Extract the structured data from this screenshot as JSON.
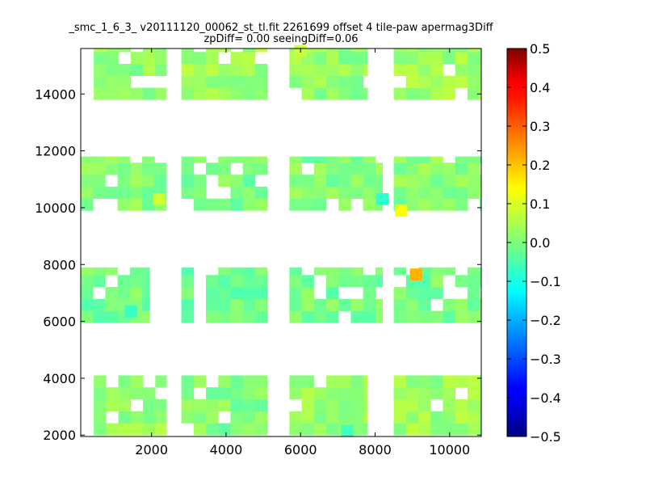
{
  "chart_data": {
    "type": "heatmap",
    "title_line1": "_smc_1_6_3_ v20111120_00062_st_tl.fit 2261699 offset 4 tile-paw apermag3Diff",
    "title_line2": "zpDiff= 0.00 seeingDiff=0.06",
    "xlabel": "",
    "ylabel": "",
    "xlim": [
      100,
      10850
    ],
    "ylim": [
      1950,
      15600
    ],
    "x_ticks": [
      2000,
      4000,
      6000,
      8000,
      10000
    ],
    "y_ticks": [
      2000,
      4000,
      6000,
      8000,
      10000,
      12000,
      14000
    ],
    "x_tick_labels": [
      "2000",
      "4000",
      "6000",
      "8000",
      "10000"
    ],
    "y_tick_labels": [
      "2000",
      "4000",
      "6000",
      "8000",
      "10000",
      "12000",
      "14000"
    ],
    "colorbar": {
      "colormap": "jet",
      "vmin": -0.5,
      "vmax": 0.5,
      "ticks": [
        0.5,
        0.4,
        0.3,
        0.2,
        0.1,
        0.0,
        -0.1,
        -0.2,
        -0.3,
        -0.4,
        -0.5
      ],
      "tick_labels": [
        "0.5",
        "0.4",
        "0.3",
        "0.2",
        "0.1",
        "0.0",
        "−0.1",
        "−0.2",
        "−0.3",
        "−0.4",
        "−0.5"
      ]
    },
    "cell_size": [
      330,
      420
    ],
    "regions": [
      {
        "x": [
          450,
          2400
        ],
        "y": [
          2000,
          4100
        ],
        "value": 0.02
      },
      {
        "x": [
          2800,
          5100
        ],
        "y": [
          2000,
          4100
        ],
        "value": 0.0
      },
      {
        "x": [
          5700,
          7800
        ],
        "y": [
          2000,
          4100
        ],
        "value": 0.02
      },
      {
        "x": [
          8500,
          10850
        ],
        "y": [
          2000,
          4100
        ],
        "value": 0.03
      },
      {
        "x": [
          0,
          1950
        ],
        "y": [
          5950,
          7900
        ],
        "value": -0.01
      },
      {
        "x": [
          2800,
          5100
        ],
        "y": [
          5950,
          7900
        ],
        "value": -0.02
      },
      {
        "x": [
          5700,
          8200
        ],
        "y": [
          5950,
          7900
        ],
        "value": -0.01
      },
      {
        "x": [
          8500,
          10850
        ],
        "y": [
          5950,
          7900
        ],
        "value": -0.01
      },
      {
        "x": [
          0,
          2400
        ],
        "y": [
          9900,
          11800
        ],
        "value": 0.01
      },
      {
        "x": [
          2800,
          5100
        ],
        "y": [
          9900,
          11800
        ],
        "value": 0.0
      },
      {
        "x": [
          5700,
          8200
        ],
        "y": [
          9900,
          11800
        ],
        "value": 0.0
      },
      {
        "x": [
          8500,
          10850
        ],
        "y": [
          9900,
          11800
        ],
        "value": 0.01
      },
      {
        "x": [
          450,
          2400
        ],
        "y": [
          13800,
          15600
        ],
        "value": 0.02
      },
      {
        "x": [
          2800,
          5100
        ],
        "y": [
          13800,
          15600
        ],
        "value": 0.03
      },
      {
        "x": [
          5700,
          7800
        ],
        "y": [
          13800,
          15600
        ],
        "value": 0.02
      },
      {
        "x": [
          8500,
          10850
        ],
        "y": [
          13800,
          15600
        ],
        "value": 0.03
      }
    ],
    "outliers": [
      {
        "x": 9100,
        "y": 7650,
        "value": 0.2
      },
      {
        "x": 8700,
        "y": 9900,
        "value": 0.12
      },
      {
        "x": 2200,
        "y": 10300,
        "value": 0.08
      },
      {
        "x": 8200,
        "y": 10300,
        "value": -0.08
      },
      {
        "x": 1450,
        "y": 6350,
        "value": -0.07
      },
      {
        "x": 7250,
        "y": 2150,
        "value": -0.06
      },
      {
        "x": 6000,
        "y": 15500,
        "value": 0.07
      }
    ]
  }
}
